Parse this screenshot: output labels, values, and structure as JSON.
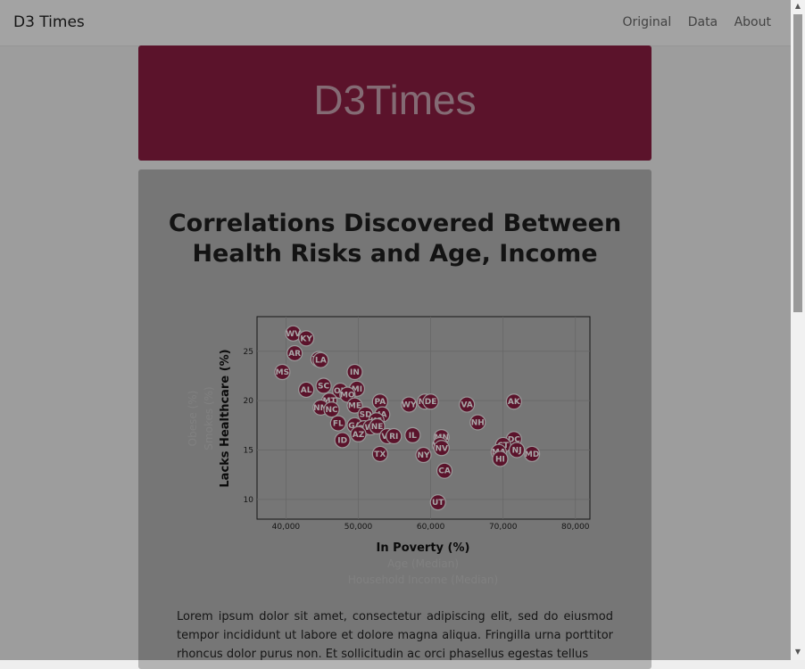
{
  "nav": {
    "brand": "D3 Times",
    "links": [
      "Original",
      "Data",
      "About"
    ]
  },
  "hero": {
    "title": "D3Times"
  },
  "headline": {
    "line1": "Correlations Discovered Between",
    "line2": "Health Risks and Age, Income"
  },
  "paragraph": "Lorem ipsum dolor sit amet, consectetur adipiscing elit, sed do eiusmod tempor incididunt ut labore et dolore magna aliqua. Fringilla urna porttitor rhoncus dolor purus non. Et sollicitudin ac orci phasellus egestas tellus",
  "colors": {
    "accent": "#8b1e42",
    "panel": "#b4b4b4"
  },
  "chart_data": {
    "type": "scatter",
    "xlabel": "In Poverty (%)",
    "xlabel_inactive": [
      "Age (Median)",
      "Household Income (Median)"
    ],
    "ylabel": "Lacks Healthcare (%)",
    "ylabel_inactive": [
      "Obese (%)",
      "Smokes (%)"
    ],
    "xlim": [
      36000,
      82000
    ],
    "ylim": [
      8,
      28.5
    ],
    "xticks": [
      40000,
      50000,
      60000,
      70000,
      80000
    ],
    "xtick_labels": [
      "40,000",
      "50,000",
      "60,000",
      "70,000",
      "80,000"
    ],
    "yticks": [
      10,
      15,
      20,
      25
    ],
    "grid": true,
    "points": [
      {
        "abbr": "WV",
        "x": 41000,
        "y": 26.8
      },
      {
        "abbr": "KY",
        "x": 42800,
        "y": 26.3
      },
      {
        "abbr": "AR",
        "x": 41200,
        "y": 24.8
      },
      {
        "abbr": "TN",
        "x": 44500,
        "y": 24.2
      },
      {
        "abbr": "LA",
        "x": 44800,
        "y": 24.1
      },
      {
        "abbr": "MS",
        "x": 39500,
        "y": 22.9
      },
      {
        "abbr": "IN",
        "x": 49500,
        "y": 22.9
      },
      {
        "abbr": "AL",
        "x": 42800,
        "y": 21.1
      },
      {
        "abbr": "SC",
        "x": 45200,
        "y": 21.5
      },
      {
        "abbr": "OK",
        "x": 47500,
        "y": 21.0
      },
      {
        "abbr": "MI",
        "x": 49800,
        "y": 21.2
      },
      {
        "abbr": "MO",
        "x": 48500,
        "y": 20.6
      },
      {
        "abbr": "MT",
        "x": 46000,
        "y": 20.0
      },
      {
        "abbr": "NM",
        "x": 44800,
        "y": 19.3
      },
      {
        "abbr": "NC",
        "x": 46300,
        "y": 19.1
      },
      {
        "abbr": "ME",
        "x": 49500,
        "y": 19.5
      },
      {
        "abbr": "PA",
        "x": 53000,
        "y": 19.9
      },
      {
        "abbr": "SD",
        "x": 51000,
        "y": 18.6
      },
      {
        "abbr": "IA",
        "x": 53300,
        "y": 18.6
      },
      {
        "abbr": "FL",
        "x": 47200,
        "y": 17.7
      },
      {
        "abbr": "GA",
        "x": 49500,
        "y": 17.5
      },
      {
        "abbr": "KS",
        "x": 52500,
        "y": 18.0
      },
      {
        "abbr": "OH",
        "x": 50800,
        "y": 17.2
      },
      {
        "abbr": "WI",
        "x": 51700,
        "y": 17.3
      },
      {
        "abbr": "NE",
        "x": 52600,
        "y": 17.4
      },
      {
        "abbr": "AZ",
        "x": 50000,
        "y": 16.6
      },
      {
        "abbr": "VT",
        "x": 54000,
        "y": 16.4
      },
      {
        "abbr": "RI",
        "x": 54900,
        "y": 16.4
      },
      {
        "abbr": "ID",
        "x": 47800,
        "y": 16.0
      },
      {
        "abbr": "IL",
        "x": 57500,
        "y": 16.5
      },
      {
        "abbr": "WY",
        "x": 57000,
        "y": 19.6
      },
      {
        "abbr": "ND",
        "x": 59200,
        "y": 19.9
      },
      {
        "abbr": "DE",
        "x": 60000,
        "y": 19.9
      },
      {
        "abbr": "VA",
        "x": 65000,
        "y": 19.6
      },
      {
        "abbr": "AK",
        "x": 71500,
        "y": 19.9
      },
      {
        "abbr": "NH",
        "x": 66500,
        "y": 17.8
      },
      {
        "abbr": "MN",
        "x": 61500,
        "y": 16.3
      },
      {
        "abbr": "WA",
        "x": 61300,
        "y": 15.5
      },
      {
        "abbr": "NV",
        "x": 61500,
        "y": 15.2
      },
      {
        "abbr": "TX",
        "x": 53000,
        "y": 14.6
      },
      {
        "abbr": "NY",
        "x": 59000,
        "y": 14.5
      },
      {
        "abbr": "CA",
        "x": 61900,
        "y": 12.9
      },
      {
        "abbr": "UT",
        "x": 61000,
        "y": 9.7
      },
      {
        "abbr": "DC",
        "x": 71500,
        "y": 16.1
      },
      {
        "abbr": "CT",
        "x": 70000,
        "y": 15.5
      },
      {
        "abbr": "NJ",
        "x": 71900,
        "y": 15.0
      },
      {
        "abbr": "MD",
        "x": 74000,
        "y": 14.6
      },
      {
        "abbr": "MA",
        "x": 69400,
        "y": 14.8
      },
      {
        "abbr": "HI",
        "x": 69600,
        "y": 14.1
      }
    ]
  }
}
